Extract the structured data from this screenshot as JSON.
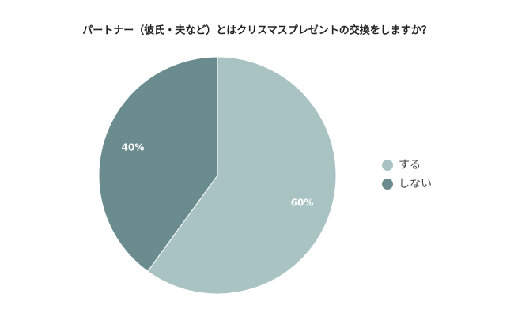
{
  "chart_data": {
    "type": "pie",
    "title": "パートナー（彼氏・夫など）とはクリスマスプレゼントの交換をしますか？",
    "categories": [
      "する",
      "しない"
    ],
    "values": [
      60,
      40
    ],
    "value_labels": [
      "60%",
      "40%"
    ],
    "colors": [
      "#a9c2c2",
      "#6b8c8f"
    ],
    "legend": "right"
  }
}
